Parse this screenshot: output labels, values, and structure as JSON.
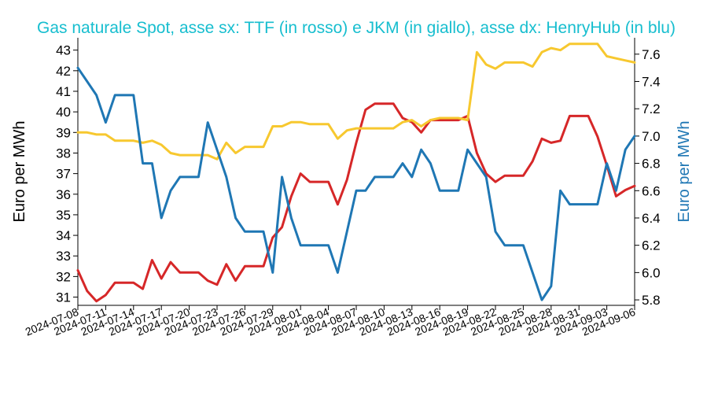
{
  "chart_data": {
    "type": "line",
    "title": "Gas naturale Spot, asse sx: TTF (in rosso) e JKM (in giallo), asse dx: HenryHub (in blu)",
    "ylabel_left": "Euro per MWh",
    "ylabel_right": "Euro per MWh",
    "ylim_left": [
      30.6,
      43.6
    ],
    "ylim_right": [
      5.76,
      7.72
    ],
    "left_ticks": [
      31,
      32,
      33,
      34,
      35,
      36,
      37,
      38,
      39,
      40,
      41,
      42,
      43
    ],
    "right_ticks": [
      5.8,
      6.0,
      6.2,
      6.4,
      6.6,
      6.8,
      7.0,
      7.2,
      7.4,
      7.6
    ],
    "x_ticks": [
      "2024-07-08",
      "2024-07-11",
      "2024-07-14",
      "2024-07-17",
      "2024-07-20",
      "2024-07-23",
      "2024-07-26",
      "2024-07-29",
      "2024-08-01",
      "2024-08-04",
      "2024-08-07",
      "2024-08-10",
      "2024-08-13",
      "2024-08-16",
      "2024-08-19",
      "2024-08-22",
      "2024-08-25",
      "2024-08-28",
      "2024-08-31",
      "2024-09-03",
      "2024-09-06"
    ],
    "x_range": [
      "2024-07-08",
      "2024-09-06"
    ],
    "series": [
      {
        "axis": "left",
        "color": "#d62728",
        "x": [
          "2024-07-08",
          "2024-07-09",
          "2024-07-10",
          "2024-07-11",
          "2024-07-12",
          "2024-07-13",
          "2024-07-14",
          "2024-07-15",
          "2024-07-16",
          "2024-07-17",
          "2024-07-18",
          "2024-07-19",
          "2024-07-20",
          "2024-07-21",
          "2024-07-22",
          "2024-07-23",
          "2024-07-24",
          "2024-07-25",
          "2024-07-26",
          "2024-07-27",
          "2024-07-28",
          "2024-07-29",
          "2024-07-30",
          "2024-07-31",
          "2024-08-01",
          "2024-08-02",
          "2024-08-03",
          "2024-08-04",
          "2024-08-05",
          "2024-08-06",
          "2024-08-07",
          "2024-08-08",
          "2024-08-09",
          "2024-08-10",
          "2024-08-11",
          "2024-08-12",
          "2024-08-13",
          "2024-08-14",
          "2024-08-15",
          "2024-08-16",
          "2024-08-17",
          "2024-08-18",
          "2024-08-19",
          "2024-08-20",
          "2024-08-21",
          "2024-08-22",
          "2024-08-23",
          "2024-08-24",
          "2024-08-25",
          "2024-08-26",
          "2024-08-27",
          "2024-08-28",
          "2024-08-29",
          "2024-08-30",
          "2024-08-31",
          "2024-09-01",
          "2024-09-02",
          "2024-09-03",
          "2024-09-04",
          "2024-09-05",
          "2024-09-06"
        ],
        "values": [
          32.3,
          31.3,
          30.8,
          31.1,
          31.7,
          31.7,
          31.7,
          31.4,
          32.8,
          31.9,
          32.7,
          32.2,
          32.2,
          32.2,
          31.8,
          31.6,
          32.6,
          31.8,
          32.5,
          32.5,
          32.5,
          33.9,
          34.4,
          35.9,
          37.0,
          36.6,
          36.6,
          36.6,
          35.5,
          36.7,
          38.5,
          40.1,
          40.4,
          40.4,
          40.4,
          39.7,
          39.5,
          39.0,
          39.6,
          39.6,
          39.6,
          39.6,
          39.8,
          38.0,
          37.0,
          36.6,
          36.9,
          36.9,
          36.9,
          37.6,
          38.7,
          38.5,
          38.6,
          39.8,
          39.8,
          39.8,
          38.8,
          37.4,
          35.9,
          36.2,
          36.4
        ]
      },
      {
        "axis": "left",
        "color": "#f7c82f",
        "x": [
          "2024-07-08",
          "2024-07-09",
          "2024-07-10",
          "2024-07-11",
          "2024-07-12",
          "2024-07-13",
          "2024-07-14",
          "2024-07-15",
          "2024-07-16",
          "2024-07-17",
          "2024-07-18",
          "2024-07-19",
          "2024-07-20",
          "2024-07-21",
          "2024-07-22",
          "2024-07-23",
          "2024-07-24",
          "2024-07-25",
          "2024-07-26",
          "2024-07-27",
          "2024-07-28",
          "2024-07-29",
          "2024-07-30",
          "2024-07-31",
          "2024-08-01",
          "2024-08-02",
          "2024-08-03",
          "2024-08-04",
          "2024-08-05",
          "2024-08-06",
          "2024-08-07",
          "2024-08-08",
          "2024-08-09",
          "2024-08-10",
          "2024-08-11",
          "2024-08-12",
          "2024-08-13",
          "2024-08-14",
          "2024-08-15",
          "2024-08-16",
          "2024-08-17",
          "2024-08-18",
          "2024-08-19",
          "2024-08-20",
          "2024-08-21",
          "2024-08-22",
          "2024-08-23",
          "2024-08-24",
          "2024-08-25",
          "2024-08-26",
          "2024-08-27",
          "2024-08-28",
          "2024-08-29",
          "2024-08-30",
          "2024-08-31",
          "2024-09-01",
          "2024-09-02",
          "2024-09-03",
          "2024-09-04",
          "2024-09-05",
          "2024-09-06"
        ],
        "values": [
          39.0,
          39.0,
          38.9,
          38.9,
          38.6,
          38.6,
          38.6,
          38.5,
          38.6,
          38.4,
          38.0,
          37.9,
          37.9,
          37.9,
          37.9,
          37.7,
          38.5,
          38.0,
          38.3,
          38.3,
          38.3,
          39.3,
          39.3,
          39.5,
          39.5,
          39.4,
          39.4,
          39.4,
          38.7,
          39.1,
          39.2,
          39.2,
          39.2,
          39.2,
          39.2,
          39.5,
          39.6,
          39.3,
          39.6,
          39.7,
          39.7,
          39.7,
          39.6,
          42.9,
          42.3,
          42.1,
          42.4,
          42.4,
          42.4,
          42.2,
          42.9,
          43.1,
          43.0,
          43.3,
          43.3,
          43.3,
          43.3,
          42.7,
          42.6,
          42.5,
          42.4
        ]
      },
      {
        "axis": "right",
        "color": "#1f77b4",
        "x": [
          "2024-07-08",
          "2024-07-09",
          "2024-07-10",
          "2024-07-11",
          "2024-07-12",
          "2024-07-13",
          "2024-07-14",
          "2024-07-15",
          "2024-07-16",
          "2024-07-17",
          "2024-07-18",
          "2024-07-19",
          "2024-07-20",
          "2024-07-21",
          "2024-07-22",
          "2024-07-23",
          "2024-07-24",
          "2024-07-25",
          "2024-07-26",
          "2024-07-27",
          "2024-07-28",
          "2024-07-29",
          "2024-07-30",
          "2024-07-31",
          "2024-08-01",
          "2024-08-02",
          "2024-08-03",
          "2024-08-04",
          "2024-08-05",
          "2024-08-06",
          "2024-08-07",
          "2024-08-08",
          "2024-08-09",
          "2024-08-10",
          "2024-08-11",
          "2024-08-12",
          "2024-08-13",
          "2024-08-14",
          "2024-08-15",
          "2024-08-16",
          "2024-08-17",
          "2024-08-18",
          "2024-08-19",
          "2024-08-20",
          "2024-08-21",
          "2024-08-22",
          "2024-08-23",
          "2024-08-24",
          "2024-08-25",
          "2024-08-26",
          "2024-08-27",
          "2024-08-28",
          "2024-08-29",
          "2024-08-30",
          "2024-08-31",
          "2024-09-01",
          "2024-09-02",
          "2024-09-03",
          "2024-09-04",
          "2024-09-05",
          "2024-09-06"
        ],
        "values": [
          7.5,
          7.4,
          7.3,
          7.1,
          7.3,
          7.3,
          7.3,
          6.8,
          6.8,
          6.4,
          6.6,
          6.7,
          6.7,
          6.7,
          7.1,
          6.9,
          6.7,
          6.4,
          6.3,
          6.3,
          6.3,
          6.0,
          6.7,
          6.4,
          6.2,
          6.2,
          6.2,
          6.2,
          6.0,
          6.3,
          6.6,
          6.6,
          6.7,
          6.7,
          6.7,
          6.8,
          6.7,
          6.9,
          6.8,
          6.6,
          6.6,
          6.6,
          6.9,
          6.8,
          6.7,
          6.3,
          6.2,
          6.2,
          6.2,
          6.0,
          5.8,
          5.9,
          6.6,
          6.5,
          6.5,
          6.5,
          6.5,
          6.8,
          6.6,
          6.9,
          7.0
        ]
      }
    ]
  }
}
